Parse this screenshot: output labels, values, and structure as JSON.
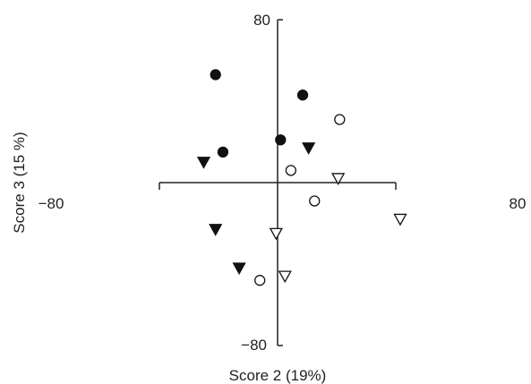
{
  "chart_data": {
    "type": "scatter",
    "xlabel": "Score 2 (19%)",
    "ylabel": "Score 3 (15 %)",
    "xlim": [
      -80,
      80
    ],
    "ylim": [
      -80,
      80
    ],
    "x_ticks": [
      "−80",
      "80"
    ],
    "y_ticks": [
      "80",
      "−80"
    ],
    "grid": false,
    "legend": "none",
    "colors": {
      "axis": "#222222",
      "marker": "#111111",
      "open_fill": "#ffffff"
    },
    "series": [
      {
        "marker": "filled-circle",
        "points": [
          {
            "x": -42,
            "y": 53
          },
          {
            "x": -37,
            "y": 15
          },
          {
            "x": 2,
            "y": 21
          },
          {
            "x": 17,
            "y": 43
          }
        ]
      },
      {
        "marker": "open-circle",
        "points": [
          {
            "x": 9,
            "y": 6
          },
          {
            "x": 42,
            "y": 31
          },
          {
            "x": 25,
            "y": -9
          },
          {
            "x": -12,
            "y": -48
          }
        ]
      },
      {
        "marker": "filled-triangle-down",
        "points": [
          {
            "x": -50,
            "y": 10
          },
          {
            "x": 21,
            "y": 17
          },
          {
            "x": -42,
            "y": -23
          },
          {
            "x": -26,
            "y": -42
          }
        ]
      },
      {
        "marker": "open-triangle-down",
        "points": [
          {
            "x": 41,
            "y": 2
          },
          {
            "x": 83,
            "y": -18
          },
          {
            "x": -1,
            "y": -25
          },
          {
            "x": 5,
            "y": -46
          }
        ]
      }
    ]
  }
}
